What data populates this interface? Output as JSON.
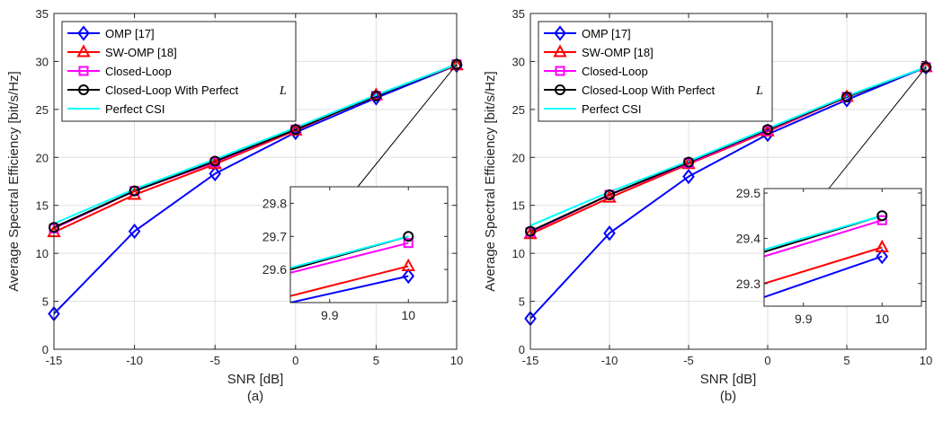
{
  "chart_data": [
    {
      "type": "line",
      "caption": "(a)",
      "xlabel": "SNR [dB]",
      "ylabel": "Average Spectral Efficiency [bit/s/Hz]",
      "xlim": [
        -15,
        10
      ],
      "ylim": [
        0,
        35
      ],
      "xticks": [
        -15,
        -10,
        -5,
        0,
        5,
        10
      ],
      "yticks": [
        0,
        5,
        10,
        15,
        20,
        25,
        30,
        35
      ],
      "grid": true,
      "legend_position": "top-left",
      "x": [
        -15,
        -10,
        -5,
        0,
        5,
        10
      ],
      "series": [
        {
          "name": "OMP [17]",
          "color": "#0000FF",
          "marker": "diamond",
          "values": [
            3.7,
            12.3,
            18.3,
            22.6,
            26.2,
            29.6
          ]
        },
        {
          "name": "SW-OMP [18]",
          "color": "#FF0000",
          "marker": "triangle",
          "values": [
            12.2,
            16.1,
            19.3,
            22.8,
            26.5,
            29.6
          ]
        },
        {
          "name": "Closed-Loop",
          "color": "#FF00FF",
          "marker": "square",
          "values": [
            12.6,
            16.5,
            19.5,
            22.9,
            26.4,
            29.7
          ]
        },
        {
          "name": "Closed-Loop With Perfect",
          "name_symbol": "L",
          "color": "#000000",
          "marker": "circle",
          "values": [
            12.7,
            16.5,
            19.6,
            22.9,
            26.4,
            29.7
          ]
        },
        {
          "name": "Perfect CSI",
          "color": "#00FFFF",
          "marker": "none",
          "values": [
            13.1,
            16.7,
            19.8,
            23.1,
            26.5,
            29.7
          ]
        }
      ],
      "inset": {
        "xlim": [
          9.85,
          10.05
        ],
        "ylim": [
          29.5,
          29.85
        ],
        "xticks": [
          9.9,
          10
        ],
        "xticklabels": [
          "9.9",
          "10"
        ],
        "yticks": [
          29.6,
          29.7,
          29.8
        ],
        "yticklabels": [
          "29.6",
          "29.7",
          "29.8"
        ],
        "x": [
          9.85,
          10
        ],
        "series_values": [
          [
            29.5,
            29.58
          ],
          [
            29.52,
            29.61
          ],
          [
            29.59,
            29.68
          ],
          [
            29.6,
            29.7
          ],
          [
            29.605,
            29.7
          ]
        ]
      }
    },
    {
      "type": "line",
      "caption": "(b)",
      "xlabel": "SNR [dB]",
      "ylabel": "Average Spectral Efficiency [bit/s/Hz]",
      "xlim": [
        -15,
        10
      ],
      "ylim": [
        0,
        35
      ],
      "xticks": [
        -15,
        -10,
        -5,
        0,
        5,
        10
      ],
      "yticks": [
        0,
        5,
        10,
        15,
        20,
        25,
        30,
        35
      ],
      "grid": true,
      "legend_position": "top-left",
      "x": [
        -15,
        -10,
        -5,
        0,
        5,
        10
      ],
      "series": [
        {
          "name": "OMP [17]",
          "color": "#0000FF",
          "marker": "diamond",
          "values": [
            3.2,
            12.1,
            18.0,
            22.4,
            26.0,
            29.4
          ]
        },
        {
          "name": "SW-OMP [18]",
          "color": "#FF0000",
          "marker": "triangle",
          "values": [
            12.0,
            15.8,
            19.3,
            22.7,
            26.3,
            29.4
          ]
        },
        {
          "name": "Closed-Loop",
          "color": "#FF00FF",
          "marker": "square",
          "values": [
            12.2,
            16.1,
            19.4,
            22.8,
            26.3,
            29.4
          ]
        },
        {
          "name": "Closed-Loop With Perfect",
          "name_symbol": "L",
          "color": "#000000",
          "marker": "circle",
          "values": [
            12.3,
            16.1,
            19.5,
            22.9,
            26.3,
            29.4
          ]
        },
        {
          "name": "Perfect CSI",
          "color": "#00FFFF",
          "marker": "none",
          "values": [
            12.9,
            16.4,
            19.6,
            23.0,
            26.4,
            29.4
          ]
        }
      ],
      "inset": {
        "xlim": [
          9.85,
          10.05
        ],
        "ylim": [
          29.25,
          29.51
        ],
        "xticks": [
          9.9,
          10
        ],
        "xticklabels": [
          "9.9",
          "10"
        ],
        "yticks": [
          29.3,
          29.4,
          29.5
        ],
        "yticklabels": [
          "29.3",
          "29.4",
          "29.5"
        ],
        "x": [
          9.85,
          10
        ],
        "series_values": [
          [
            29.27,
            29.36
          ],
          [
            29.3,
            29.38
          ],
          [
            29.36,
            29.44
          ],
          [
            29.37,
            29.45
          ],
          [
            29.375,
            29.45
          ]
        ]
      }
    }
  ]
}
